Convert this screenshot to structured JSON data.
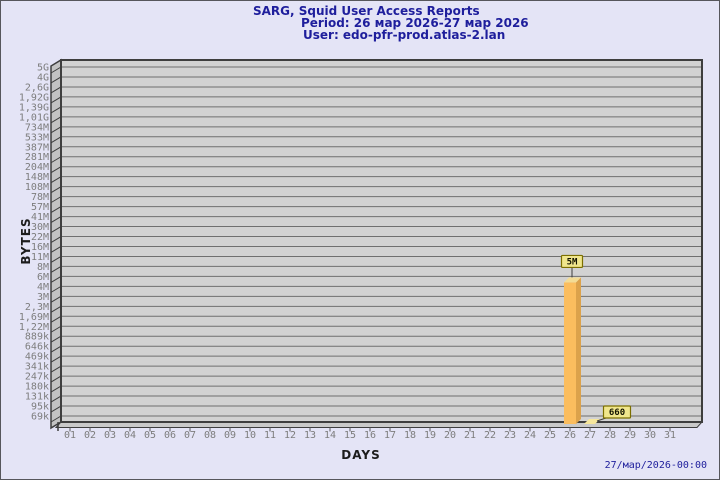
{
  "header": {
    "title": "SARG, Squid User Access Reports",
    "period": "Period: 26 мар 2026-27 мар 2026",
    "user": "User: edo-pfr-prod.atlas-2.lan",
    "text_color": "#1e1e9c"
  },
  "footer": {
    "timestamp": "27/мар/2026-00:00"
  },
  "chart_data": {
    "type": "bar",
    "title": "SARG, Squid User Access Reports",
    "xlabel": "DAYS",
    "ylabel": "BYTES",
    "y_scale": "log",
    "y_axis_top_value": 5000000000,
    "y_axis_bottom_value": 69000,
    "y_ticks": [
      "5G",
      "4G",
      "2,6G",
      "1,92G",
      "1,39G",
      "1,01G",
      "734M",
      "533M",
      "387M",
      "281M",
      "204M",
      "148M",
      "108M",
      "78M",
      "57M",
      "41M",
      "30M",
      "22M",
      "16M",
      "11M",
      "8M",
      "6M",
      "4M",
      "3M",
      "2,3M",
      "1,69M",
      "1,22M",
      "889k",
      "646k",
      "469k",
      "341k",
      "247k",
      "180k",
      "131k",
      "95k",
      "69k"
    ],
    "x_ticks": [
      "01",
      "02",
      "03",
      "04",
      "05",
      "06",
      "07",
      "08",
      "09",
      "10",
      "11",
      "12",
      "13",
      "14",
      "15",
      "16",
      "17",
      "18",
      "19",
      "20",
      "21",
      "22",
      "23",
      "24",
      "25",
      "26",
      "27",
      "28",
      "29",
      "30",
      "31"
    ],
    "bars": [
      {
        "x": "26",
        "value": 5000000,
        "label": "5M"
      },
      {
        "x": "27",
        "value": 660,
        "label": "660"
      }
    ],
    "legend": null,
    "grid": true,
    "colors": {
      "plot_bg": "#d2d2d2",
      "wall": "#c3c3c3",
      "floor": "#c9c9c9",
      "grid_line": "#6f6f6f",
      "frame": "#3e3e3e",
      "bar_front": "#fbbd5e",
      "bar_side": "#dca24b",
      "bar_top": "#f3dc95",
      "bar_tiny": "#f6e69c",
      "annotation_bg": "#f0e68c",
      "annotation_border": "#7c6f00",
      "tick_text": "#7d7d7d"
    }
  }
}
